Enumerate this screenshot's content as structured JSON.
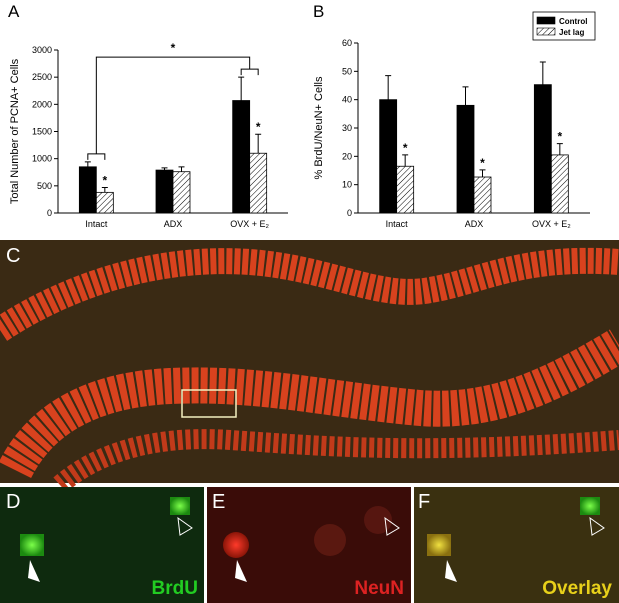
{
  "chart_data": [
    {
      "type": "bar",
      "panel_label": "A",
      "y_label": "Total Number of PCNA+ Cells",
      "categories": [
        "Intact",
        "ADX",
        "OVX + E₂"
      ],
      "series": [
        {
          "name": "Control",
          "color": "#000000",
          "values": [
            850,
            790,
            2070
          ],
          "errors": [
            90,
            40,
            430
          ],
          "significance": [
            null,
            null,
            null
          ]
        },
        {
          "name": "Jet lag",
          "color": "#000000",
          "fill": "hatch",
          "values": [
            380,
            760,
            1100
          ],
          "errors": [
            90,
            90,
            350
          ],
          "significance": [
            "*",
            null,
            "*"
          ]
        }
      ],
      "ylim": [
        0,
        3000
      ],
      "yticks": [
        0,
        500,
        1000,
        1500,
        2000,
        2500,
        3000
      ],
      "bracket": {
        "from": 0,
        "to": 2,
        "label": "*"
      },
      "legend": false
    },
    {
      "type": "bar",
      "panel_label": "B",
      "y_label": "% BrdU/NeuN+ Cells",
      "categories": [
        "Intact",
        "ADX",
        "OVX + E₂"
      ],
      "series": [
        {
          "name": "Control",
          "color": "#000000",
          "values": [
            40,
            38,
            45.3
          ],
          "errors": [
            8.5,
            6.5,
            8
          ],
          "significance": [
            null,
            null,
            null
          ]
        },
        {
          "name": "Jet lag",
          "color": "#000000",
          "fill": "hatch",
          "values": [
            16.5,
            12.7,
            20.5
          ],
          "errors": [
            4,
            2.5,
            4
          ],
          "significance": [
            "*",
            "*",
            "*"
          ]
        }
      ],
      "ylim": [
        0,
        60
      ],
      "yticks": [
        0,
        10,
        20,
        30,
        40,
        50,
        60
      ],
      "legend": true,
      "legend_position": "upper right"
    }
  ],
  "images": [
    {
      "label": "C"
    },
    {
      "label": "D",
      "stain": "BrdU",
      "stain_color": "#22cc22"
    },
    {
      "label": "E",
      "stain": "NeuN",
      "stain_color": "#dd2222"
    },
    {
      "label": "F",
      "stain": "Overlay",
      "stain_color": "#e8d01a"
    }
  ]
}
